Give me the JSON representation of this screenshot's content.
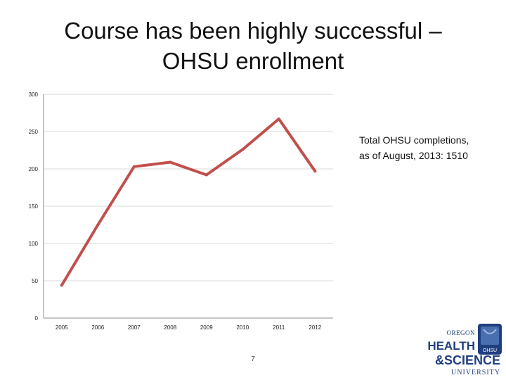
{
  "slide": {
    "title_line1": "Course has been highly successful –",
    "title_line2": "OHSU enrollment",
    "note_line1": "Total OHSU completions,",
    "note_line2": "as of August, 2013: 1510",
    "page_number": "7"
  },
  "logo": {
    "line1": "OREGON",
    "line2": "HEALTH",
    "line3": "&SCIENCE",
    "line4": "UNIVERSITY",
    "badge": "OHSU",
    "color": "#1f3f7f"
  },
  "chart_data": {
    "type": "line",
    "categories": [
      "2005",
      "2006",
      "2007",
      "2008",
      "2009",
      "2010",
      "2011",
      "2012"
    ],
    "series": [
      {
        "values": [
          44,
          125,
          203,
          209,
          192,
          226,
          267,
          197
        ],
        "color": "#c0504d"
      }
    ],
    "ylim": [
      0,
      300
    ],
    "yticks": [
      0,
      50,
      100,
      150,
      200,
      250,
      300
    ],
    "grid": true
  }
}
